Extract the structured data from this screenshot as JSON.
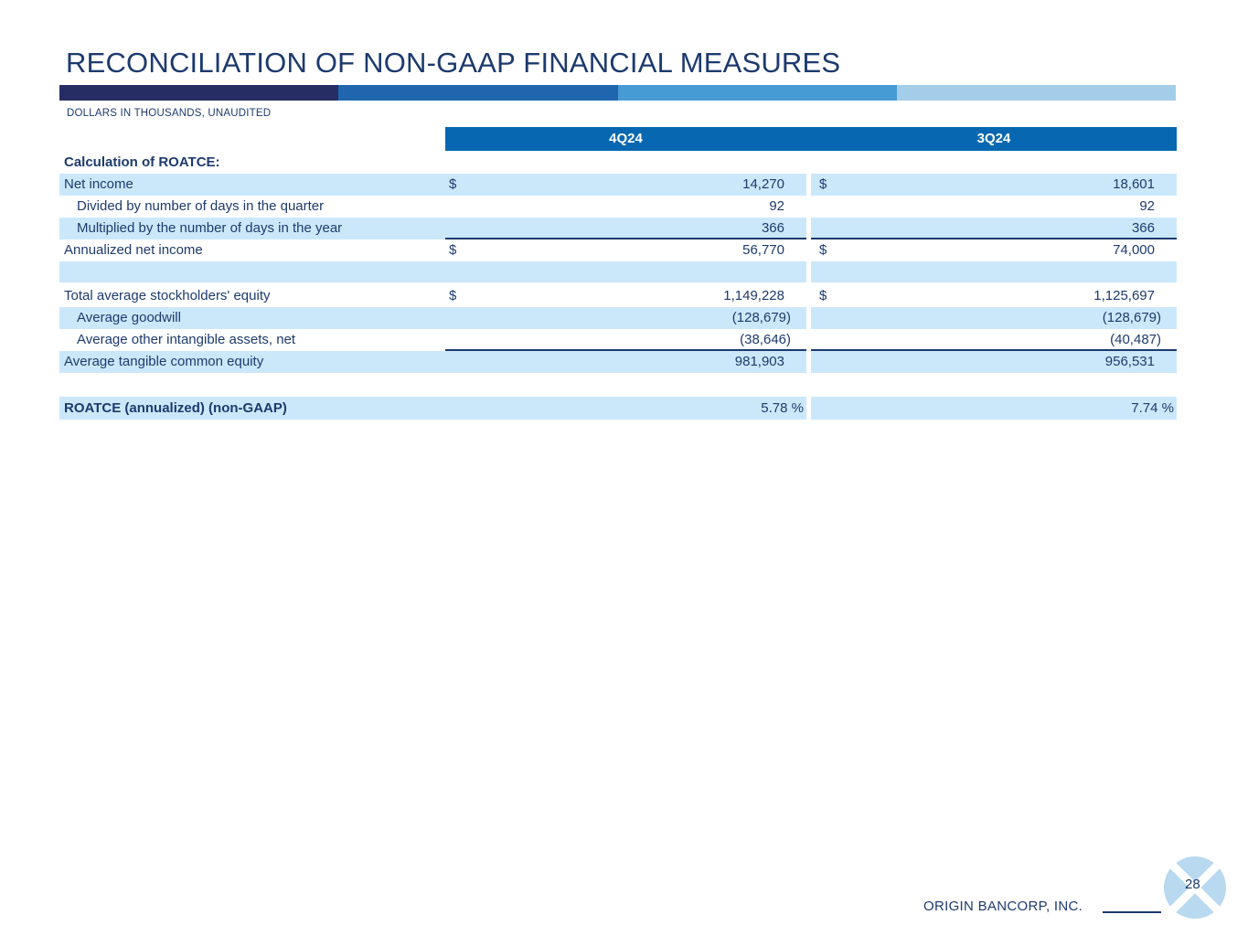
{
  "title": "RECONCILIATION OF NON-GAAP FINANCIAL MEASURES",
  "subtitle": "DOLLARS IN THOUSANDS, UNAUDITED",
  "colors": {
    "text_navy": "#1d3a6e",
    "header_blue": "#0768b1",
    "row_shade_blue": "#cbe8fa",
    "logo_circle_blue": "#b8d9ef",
    "accent_bar": [
      "#262d64",
      "#2066af",
      "#469bd5",
      "#a3cde9"
    ]
  },
  "table": {
    "columns": [
      "4Q24",
      "3Q24"
    ],
    "rows": [
      {
        "label": "Calculation of ROATCE:",
        "bold": true,
        "shade": false,
        "v1": "",
        "v2": ""
      },
      {
        "label": "Net income",
        "shade": true,
        "d1": "$",
        "v1": "14,270",
        "d2": "$",
        "v2": "18,601"
      },
      {
        "label": "Divided by number of days in the quarter",
        "indent": true,
        "shade": false,
        "v1": "92",
        "v2": "92"
      },
      {
        "label": "Multiplied by the number of days in the year",
        "indent": true,
        "shade": true,
        "v1": "366",
        "v2": "366",
        "underline": true
      },
      {
        "label": "Annualized net income",
        "shade": false,
        "d1": "$",
        "v1": "56,770",
        "d2": "$",
        "v2": "74,000"
      },
      {
        "label": "",
        "spacer": true,
        "shade": true,
        "v1": "",
        "v2": ""
      },
      {
        "label": "Total average stockholders' equity",
        "shade": false,
        "gap_before": true,
        "d1": "$",
        "v1": "1,149,228",
        "d2": "$",
        "v2": "1,125,697"
      },
      {
        "label": "Average goodwill",
        "indent": true,
        "shade": true,
        "v1": "(128,679)",
        "v2": "(128,679)"
      },
      {
        "label": "Average other intangible assets, net",
        "indent": true,
        "shade": false,
        "v1": "(38,646)",
        "v2": "(40,487)",
        "underline": true
      },
      {
        "label": "Average tangible common equity",
        "shade": true,
        "v1": "981,903",
        "v2": "956,531"
      }
    ],
    "summary": {
      "label": "ROATCE (annualized) (non-GAAP)",
      "v1": "5.78 %",
      "v2": "7.74 %"
    }
  },
  "footer": {
    "company": "ORIGIN BANCORP, INC.",
    "page_number": "28"
  }
}
